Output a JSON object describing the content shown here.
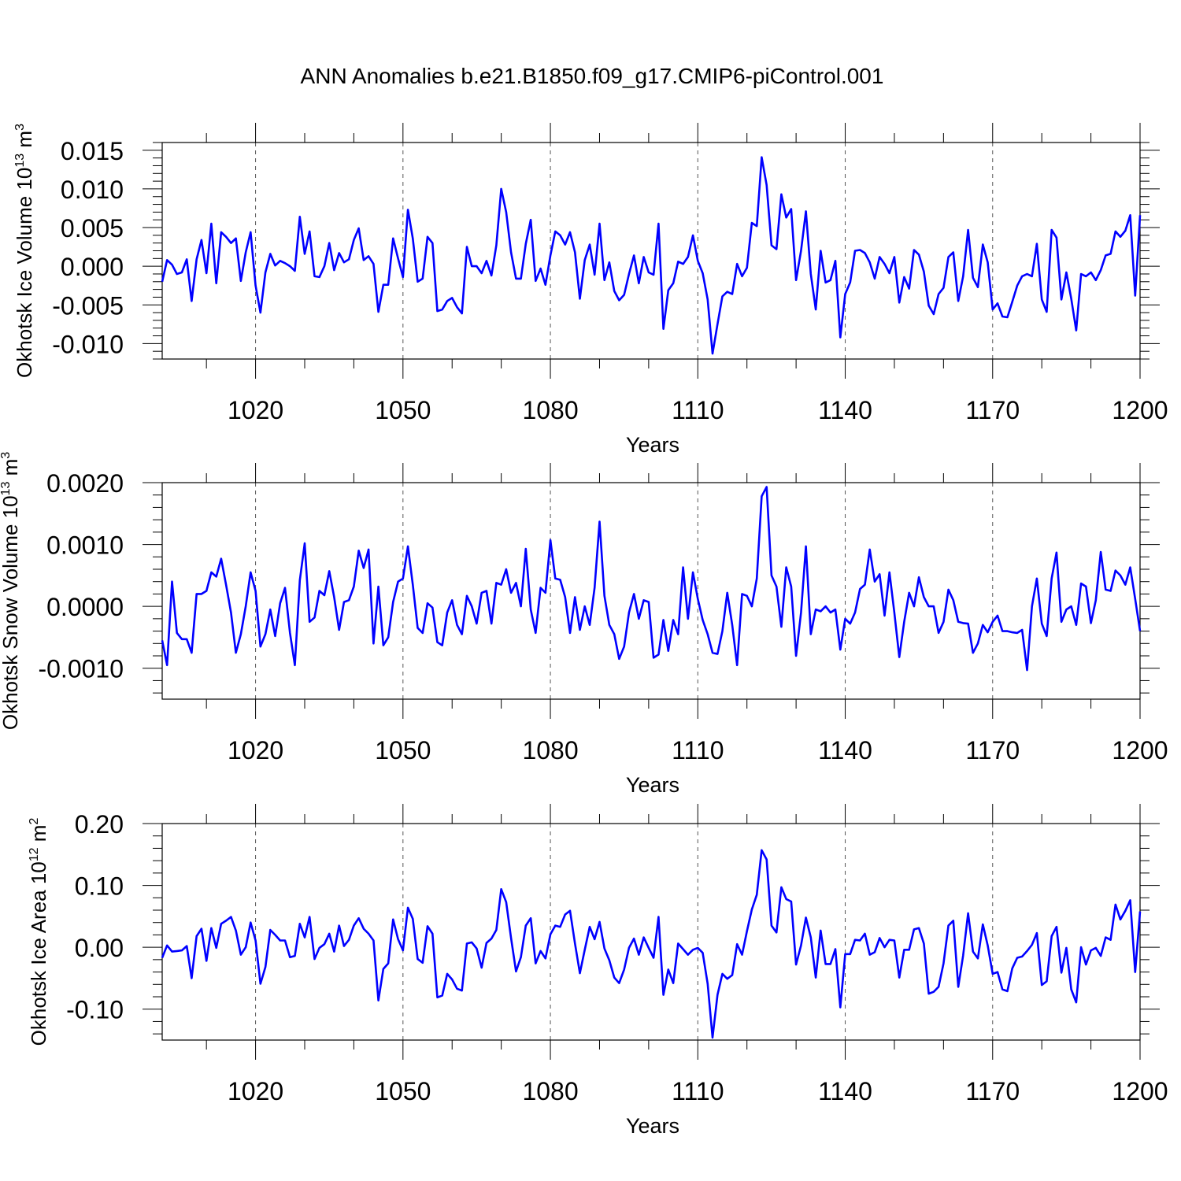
{
  "figure": {
    "title": "ANN Anomalies b.e21.B1850.f09_g17.CMIP6-piControl.001"
  },
  "chart_data": [
    {
      "type": "line",
      "title": "",
      "xlabel": "Years",
      "ylabel": "Okhotsk Ice Volume",
      "ylabel_base": "10",
      "ylabel_exp": "13",
      "ylabel_unit": "m",
      "ylabel_unit_exp": "3",
      "xlim": [
        1001,
        1200
      ],
      "ylim": [
        -0.012,
        0.016
      ],
      "xticks": [
        1020,
        1050,
        1080,
        1110,
        1140,
        1170,
        1200
      ],
      "xtick_labels": [
        "1020",
        "1050",
        "1080",
        "1110",
        "1140",
        "1170",
        "1200"
      ],
      "yticks": [
        -0.01,
        -0.005,
        0,
        0.005,
        0.01,
        0.015
      ],
      "ytick_labels": [
        "-0.010",
        "-0.005",
        "0.000",
        "0.005",
        "0.010",
        "0.015"
      ],
      "grid": "dashed vertical at major x ticks",
      "series": [
        {
          "name": "Okhotsk Ice Volume",
          "color": "#0000ff",
          "x_start": 1001,
          "values": [
            -0.002,
            0.0008,
            0.0002,
            -0.001,
            -0.0008,
            0.0009,
            -0.0045,
            0.0009,
            0.0034,
            -0.0009,
            0.0055,
            -0.0022,
            0.0044,
            0.0038,
            0.003,
            0.0036,
            -0.0019,
            0.0018,
            0.0044,
            -0.0025,
            -0.006,
            -0.0008,
            0.0016,
            0.0001,
            0.0007,
            0.0004,
            0.0,
            -0.0006,
            0.0064,
            0.0016,
            0.0045,
            -0.0013,
            -0.0014,
            0.0,
            0.003,
            -0.0005,
            0.0017,
            0.0005,
            0.0009,
            0.0034,
            0.0049,
            0.0008,
            0.0013,
            0.0003,
            -0.0059,
            -0.0024,
            -0.0024,
            0.0036,
            0.001,
            -0.0014,
            0.0073,
            0.0036,
            -0.002,
            -0.0016,
            0.0038,
            0.003,
            -0.0058,
            -0.0056,
            -0.0045,
            -0.0041,
            -0.0053,
            -0.0061,
            0.0025,
            0.0,
            0.0,
            -0.0009,
            0.0007,
            -0.0012,
            0.0027,
            0.01,
            0.007,
            0.0018,
            -0.0016,
            -0.0016,
            0.0029,
            0.006,
            -0.0019,
            -0.0003,
            -0.0024,
            0.0014,
            0.0045,
            0.004,
            0.0028,
            0.0044,
            0.0018,
            -0.0042,
            0.0008,
            0.0028,
            -0.0011,
            0.0055,
            -0.0018,
            0.0005,
            -0.0032,
            -0.0044,
            -0.0037,
            -0.001,
            0.0014,
            -0.0022,
            0.0012,
            -0.0008,
            -0.0011,
            0.0055,
            -0.0081,
            -0.0031,
            -0.0022,
            0.0006,
            0.0003,
            0.0012,
            0.004,
            0.0007,
            -0.0009,
            -0.0043,
            -0.0113,
            -0.0075,
            -0.0039,
            -0.0033,
            -0.0036,
            0.0003,
            -0.0013,
            -0.0002,
            0.0056,
            0.0052,
            0.0141,
            0.0105,
            0.0027,
            0.0022,
            0.0093,
            0.0063,
            0.0074,
            -0.0018,
            0.002,
            0.0071,
            -0.001,
            -0.0056,
            0.002,
            -0.0021,
            -0.0018,
            0.0007,
            -0.0092,
            -0.0036,
            -0.0021,
            0.002,
            0.0021,
            0.0017,
            0.0005,
            -0.0016,
            0.0012,
            0.0003,
            -0.0009,
            0.0012,
            -0.0047,
            -0.0014,
            -0.0029,
            0.0021,
            0.0015,
            -0.0007,
            -0.0051,
            -0.0062,
            -0.0036,
            -0.0028,
            0.0012,
            0.0018,
            -0.0045,
            -0.0013,
            0.0047,
            -0.0015,
            -0.0027,
            0.0028,
            0.0005,
            -0.0056,
            -0.0048,
            -0.0065,
            -0.0066,
            -0.0046,
            -0.0025,
            -0.0013,
            -0.001,
            -0.0013,
            0.0029,
            -0.0043,
            -0.0059,
            0.0047,
            0.0037,
            -0.0043,
            -0.0008,
            -0.0042,
            -0.0083,
            -0.001,
            -0.0013,
            -0.0008,
            -0.0018,
            -0.0005,
            0.0014,
            0.0016,
            0.0045,
            0.0038,
            0.0046,
            0.0066,
            -0.0038,
            0.0066
          ]
        }
      ]
    },
    {
      "type": "line",
      "title": "",
      "xlabel": "Years",
      "ylabel": "Okhotsk Snow Volume",
      "ylabel_base": "10",
      "ylabel_exp": "13",
      "ylabel_unit": "m",
      "ylabel_unit_exp": "3",
      "xlim": [
        1001,
        1200
      ],
      "ylim": [
        -0.0015,
        0.002
      ],
      "xticks": [
        1020,
        1050,
        1080,
        1110,
        1140,
        1170,
        1200
      ],
      "xtick_labels": [
        "1020",
        "1050",
        "1080",
        "1110",
        "1140",
        "1170",
        "1200"
      ],
      "yticks": [
        -0.001,
        0,
        0.001,
        0.002
      ],
      "ytick_labels": [
        "-0.0010",
        "0.0000",
        "0.0010",
        "0.0020"
      ],
      "grid": "dashed vertical at major x ticks",
      "series": [
        {
          "name": "Okhotsk Snow Volume",
          "color": "#0000ff",
          "x_start": 1001,
          "values": [
            -0.00055,
            -0.00095,
            0.0004,
            -0.00043,
            -0.00053,
            -0.00053,
            -0.00075,
            0.0002,
            0.0002,
            0.00025,
            0.00055,
            0.00048,
            0.00077,
            0.00035,
            -0.0001,
            -0.00075,
            -0.00045,
            -0.0,
            0.00055,
            0.00025,
            -0.00065,
            -0.00045,
            -5e-05,
            -0.00048,
            5e-05,
            0.0003,
            -0.00043,
            -0.00095,
            0.00042,
            0.00102,
            -0.00025,
            -0.00018,
            0.00025,
            0.00018,
            0.00057,
            0.00015,
            -0.00038,
            7e-05,
            0.0001,
            0.00032,
            0.0009,
            0.00062,
            0.00092,
            -0.0006,
            0.00032,
            -0.00063,
            -0.0005,
            7e-05,
            0.0004,
            0.00045,
            0.00097,
            0.00035,
            -0.00035,
            -0.00043,
            5e-05,
            -2e-05,
            -0.00058,
            -0.00063,
            -0.0001,
            0.0001,
            -0.0003,
            -0.00045,
            0.00017,
            0.0,
            -0.00028,
            0.00022,
            0.00025,
            -0.00028,
            0.00038,
            0.00035,
            0.0006,
            0.00022,
            0.00038,
            0.0,
            0.00093,
            -5e-05,
            -0.00043,
            0.0003,
            0.00022,
            0.00107,
            0.00045,
            0.00043,
            0.00015,
            -0.00043,
            0.00015,
            -0.00038,
            0.0,
            -0.0003,
            0.0003,
            0.00137,
            0.00017,
            -0.0003,
            -0.00045,
            -0.00085,
            -0.00065,
            -0.0001,
            0.0002,
            -0.0002,
            0.0001,
            7e-05,
            -0.00083,
            -0.00078,
            -0.00022,
            -0.00072,
            -0.00022,
            -0.00045,
            0.00063,
            -0.0002,
            0.00055,
            0.00012,
            -0.00022,
            -0.00045,
            -0.00075,
            -0.00077,
            -0.0004,
            0.00022,
            -0.0003,
            -0.00095,
            0.0002,
            0.00017,
            0.0,
            0.00045,
            0.00178,
            0.00193,
            0.0005,
            0.00032,
            -0.00033,
            0.00063,
            0.00032,
            -0.0008,
            -0.0001,
            0.00097,
            -0.00045,
            -5e-05,
            -8e-05,
            0.0,
            -0.0001,
            -5e-05,
            -0.0007,
            -0.0002,
            -0.00028,
            -0.0001,
            0.00028,
            0.00035,
            0.00092,
            0.0004,
            0.00052,
            -0.00015,
            0.00055,
            -0.0001,
            -0.00082,
            -0.00025,
            0.00022,
            0.0,
            0.00047,
            0.00015,
            0.0,
            0.0,
            -0.00043,
            -0.00025,
            0.00027,
            0.0001,
            -0.00025,
            -0.00027,
            -0.00028,
            -0.00075,
            -0.0006,
            -0.0003,
            -0.00042,
            -0.00025,
            -0.00015,
            -0.0004,
            -0.0004,
            -0.00042,
            -0.00043,
            -0.00038,
            -0.00103,
            0.0,
            0.00045,
            -0.00028,
            -0.00048,
            0.00045,
            0.00087,
            -0.00025,
            -5e-05,
            0.0,
            -0.0003,
            0.00037,
            0.00032,
            -0.00027,
            0.0001,
            0.00088,
            0.00027,
            0.00025,
            0.00058,
            0.0005,
            0.00035,
            0.00063,
            0.00012,
            -0.0004
          ]
        }
      ]
    },
    {
      "type": "line",
      "title": "",
      "xlabel": "Years",
      "ylabel": "Okhotsk Ice Area",
      "ylabel_base": "10",
      "ylabel_exp": "12",
      "ylabel_unit": "m",
      "ylabel_unit_exp": "2",
      "xlim": [
        1001,
        1200
      ],
      "ylim": [
        -0.15,
        0.2
      ],
      "xticks": [
        1020,
        1050,
        1080,
        1110,
        1140,
        1170,
        1200
      ],
      "xtick_labels": [
        "1020",
        "1050",
        "1080",
        "1110",
        "1140",
        "1170",
        "1200"
      ],
      "yticks": [
        -0.1,
        0,
        0.1,
        0.2
      ],
      "ytick_labels": [
        "-0.10",
        "0.00",
        "0.10",
        "0.20"
      ],
      "grid": "dashed vertical at major x ticks",
      "series": [
        {
          "name": "Okhotsk Ice Area",
          "color": "#0000ff",
          "x_start": 1001,
          "values": [
            -0.017,
            0.003,
            -0.007,
            -0.006,
            -0.005,
            0.002,
            -0.05,
            0.018,
            0.03,
            -0.022,
            0.031,
            -0.001,
            0.038,
            0.043,
            0.049,
            0.027,
            -0.012,
            0.0,
            0.04,
            0.011,
            -0.059,
            -0.032,
            0.028,
            0.02,
            0.011,
            0.011,
            -0.016,
            -0.014,
            0.038,
            0.016,
            0.049,
            -0.019,
            -0.001,
            0.005,
            0.022,
            -0.007,
            0.035,
            0.002,
            0.012,
            0.035,
            0.047,
            0.03,
            0.022,
            0.011,
            -0.086,
            -0.035,
            -0.026,
            0.045,
            0.013,
            -0.005,
            0.064,
            0.046,
            -0.019,
            -0.025,
            0.034,
            0.022,
            -0.081,
            -0.078,
            -0.043,
            -0.052,
            -0.067,
            -0.07,
            0.006,
            0.008,
            -0.002,
            -0.033,
            0.007,
            0.014,
            0.028,
            0.094,
            0.073,
            0.015,
            -0.039,
            -0.016,
            0.035,
            0.047,
            -0.026,
            -0.006,
            -0.018,
            0.021,
            0.035,
            0.033,
            0.053,
            0.059,
            0.006,
            -0.042,
            -0.004,
            0.033,
            0.013,
            0.041,
            -0.002,
            -0.021,
            -0.049,
            -0.058,
            -0.036,
            -0.001,
            0.014,
            -0.012,
            0.016,
            -0.001,
            -0.017,
            0.049,
            -0.077,
            -0.036,
            -0.058,
            0.006,
            -0.003,
            -0.012,
            -0.004,
            -0.001,
            -0.009,
            -0.059,
            -0.146,
            -0.077,
            -0.043,
            -0.051,
            -0.045,
            0.005,
            -0.012,
            0.026,
            0.061,
            0.085,
            0.157,
            0.142,
            0.035,
            0.024,
            0.097,
            0.078,
            0.074,
            -0.028,
            0.003,
            0.048,
            0.016,
            -0.049,
            0.027,
            -0.027,
            -0.027,
            -0.003,
            -0.097,
            -0.011,
            -0.011,
            0.012,
            0.011,
            0.022,
            -0.012,
            -0.008,
            0.015,
            0.0,
            0.012,
            0.011,
            -0.049,
            -0.004,
            -0.004,
            0.029,
            0.031,
            0.006,
            -0.075,
            -0.072,
            -0.064,
            -0.026,
            0.035,
            0.043,
            -0.064,
            -0.013,
            0.055,
            -0.007,
            -0.018,
            0.037,
            0.003,
            -0.043,
            -0.04,
            -0.068,
            -0.071,
            -0.034,
            -0.017,
            -0.015,
            -0.006,
            0.004,
            0.023,
            -0.061,
            -0.055,
            0.018,
            0.033,
            -0.041,
            -0.001,
            -0.068,
            -0.089,
            0.0,
            -0.028,
            -0.005,
            -0.001,
            -0.014,
            0.016,
            0.012,
            0.069,
            0.045,
            0.059,
            0.076,
            -0.04,
            0.058
          ]
        }
      ]
    }
  ]
}
